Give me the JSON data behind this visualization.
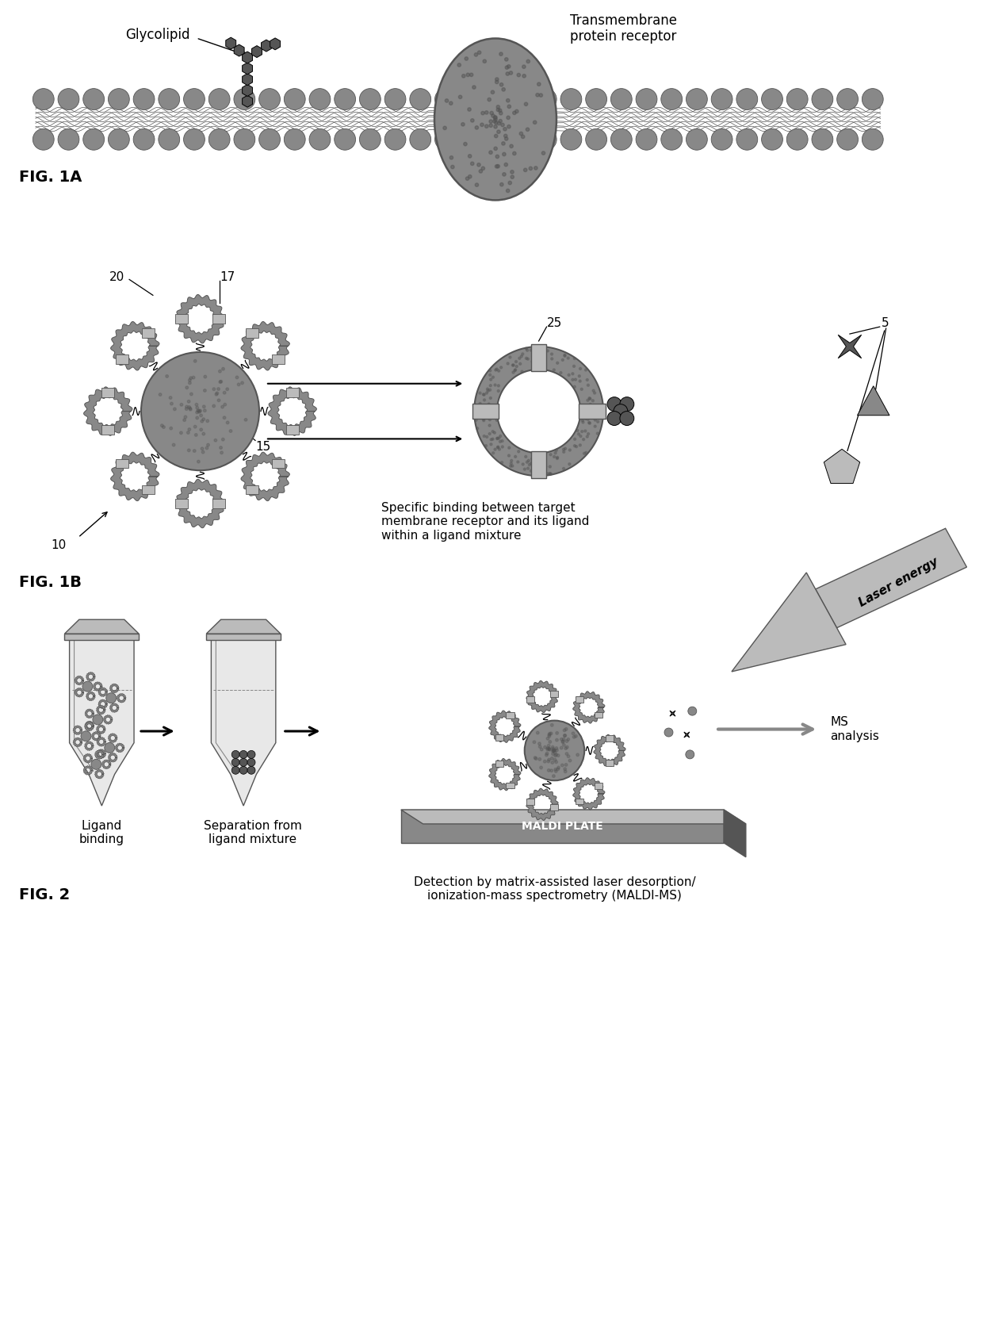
{
  "fig_width": 12.4,
  "fig_height": 16.62,
  "dpi": 100,
  "bg_color": "#ffffff",
  "gray_dark": "#555555",
  "gray_medium": "#888888",
  "gray_light": "#bbbbbb",
  "gray_very_light": "#dddddd",
  "black": "#000000",
  "fig1a_label": "FIG. 1A",
  "fig1b_label": "FIG. 1B",
  "fig2_label": "FIG. 2",
  "glycolipid_label": "Glycolipid",
  "transmembrane_label": "Transmembrane\nprotein receptor",
  "label_20": "20",
  "label_17": "17",
  "label_15": "15",
  "label_10": "10",
  "label_25": "25",
  "label_5": "5",
  "specific_binding_text": "Specific binding between target\nmembrane receptor and its ligand\nwithin a ligand mixture",
  "ligand_binding_text": "Ligand\nbinding",
  "separation_text": "Separation from\nligand mixture",
  "detection_text": "Detection by matrix-assisted laser desorption/\nionization-mass spectrometry (MALDI-MS)",
  "maldi_plate_text": "MALDI PLATE",
  "laser_energy_text": "Laser energy",
  "ms_analysis_text": "MS\nanalysis"
}
